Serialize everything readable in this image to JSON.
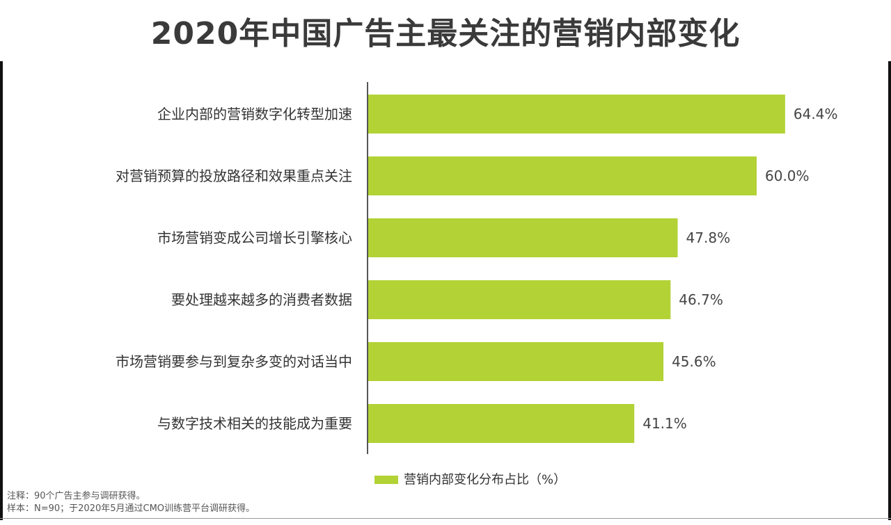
{
  "title": "2020年中国广告主最关注的营销内部变化",
  "notes": {
    "note": "注释：90个广告主参与调研获得。",
    "sample": "样本：N=90；于2020年5月通过CMO训练营平台调研获得。"
  },
  "chart_data": {
    "type": "bar",
    "orientation": "horizontal",
    "categories": [
      "企业内部的营销数字化转型加速",
      "对营销预算的投放路径和效果重点关注",
      "市场营销变成公司增长引擎核心",
      "要处理越来越多的消费者数据",
      "市场营销要参与到复杂多变的对话当中",
      "与数字技术相关的技能成为重要"
    ],
    "series": [
      {
        "name": "营销内部变化分布占比（%）",
        "values": [
          64.4,
          60.0,
          47.8,
          46.7,
          45.6,
          41.1
        ],
        "labels": [
          "64.4%",
          "60.0%",
          "47.8%",
          "46.7%",
          "45.6%",
          "41.1%"
        ],
        "color": "#b2d235"
      }
    ],
    "xlim": [
      0,
      100
    ],
    "grid": false,
    "legend": "bottom"
  }
}
